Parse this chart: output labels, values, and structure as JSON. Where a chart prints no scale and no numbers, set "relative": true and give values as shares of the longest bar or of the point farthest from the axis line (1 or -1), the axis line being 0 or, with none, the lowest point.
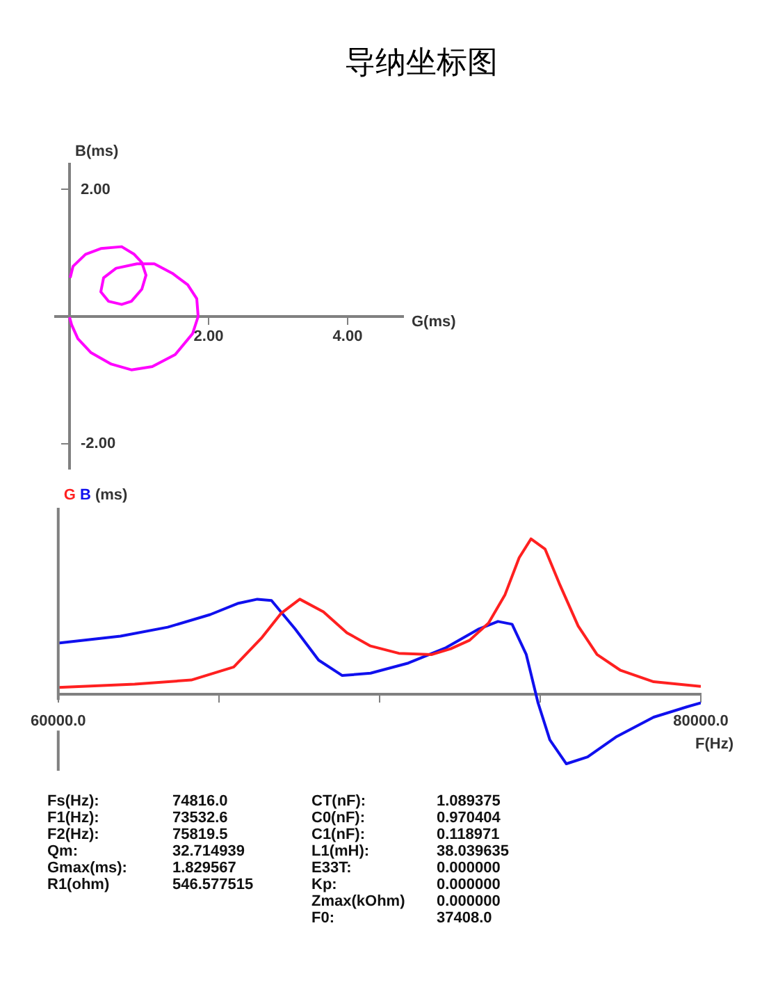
{
  "chart_data": [
    {
      "type": "line",
      "title": "导纳坐标图",
      "xlabel": "G(ms)",
      "ylabel": "B(ms)",
      "xlim": [
        -0.2,
        4.8
      ],
      "ylim": [
        -2.4,
        2.4
      ],
      "xticks": [
        {
          "value": 2,
          "label": "2.00"
        },
        {
          "value": 4,
          "label": "4.00"
        }
      ],
      "yticks": [
        {
          "value": 2,
          "label": "2.00"
        },
        {
          "value": -2,
          "label": "-2.00"
        }
      ],
      "series": [
        {
          "color": "#ff00ff",
          "x": [
            0.01,
            0.05,
            0.23,
            0.45,
            0.75,
            0.93,
            1.04,
            1.1,
            1.04,
            0.89,
            0.75,
            0.56,
            0.45,
            0.49,
            0.67,
            0.97,
            1.22,
            1.48,
            1.7,
            1.83,
            1.85,
            1.77,
            1.52,
            1.19,
            0.89,
            0.6,
            0.31,
            0.12,
            0.03,
            0
          ],
          "values": [
            0.61,
            0.79,
            0.98,
            1.07,
            1.1,
            0.98,
            0.85,
            0.65,
            0.43,
            0.24,
            0.19,
            0.24,
            0.39,
            0.61,
            0.76,
            0.83,
            0.83,
            0.68,
            0.5,
            0.28,
            0,
            -0.27,
            -0.6,
            -0.79,
            -0.84,
            -0.75,
            -0.57,
            -0.35,
            -0.13,
            -0.01
          ]
        }
      ]
    },
    {
      "type": "line",
      "relative": true,
      "xlabel": "F(Hz)",
      "ylabel": "(ms)",
      "tick_labels": "x",
      "xlim": [
        60000,
        80000
      ],
      "xticks": [
        {
          "value": 60000,
          "label": "60000.0"
        },
        {
          "value": 65000,
          "label": null
        },
        {
          "value": 70000,
          "label": null
        },
        {
          "value": 75000,
          "label": null
        },
        {
          "value": 80000,
          "label": "80000.0"
        }
      ],
      "series": [
        {
          "name": "G",
          "color": "#ff2020",
          "x": [
            60000,
            62379,
            64141,
            65462,
            66343,
            66931,
            67518,
            68252,
            68986,
            69720,
            70601,
            71630,
            72217,
            72805,
            73392,
            73906,
            74346,
            74713,
            75154,
            75594,
            76182,
            76769,
            77503,
            78531,
            80000
          ],
          "values": [
            0.044,
            0.066,
            0.092,
            0.176,
            0.366,
            0.52,
            0.612,
            0.531,
            0.396,
            0.311,
            0.264,
            0.256,
            0.293,
            0.348,
            0.458,
            0.641,
            0.879,
            1,
            0.934,
            0.714,
            0.44,
            0.256,
            0.154,
            0.081,
            0.051
          ]
        },
        {
          "name": "B",
          "color": "#1010ee",
          "x": [
            60000,
            61938,
            63407,
            64729,
            65609,
            66197,
            66637,
            67371,
            68105,
            68840,
            69720,
            70895,
            72070,
            73098,
            73686,
            74126,
            74567,
            74934,
            75301,
            75815,
            76476,
            77357,
            78531,
            79559,
            80000
          ],
          "values": [
            0.33,
            0.374,
            0.432,
            0.513,
            0.586,
            0.612,
            0.604,
            0.421,
            0.22,
            0.121,
            0.136,
            0.201,
            0.3,
            0.421,
            0.469,
            0.451,
            0.256,
            -0.055,
            -0.293,
            -0.447,
            -0.403,
            -0.275,
            -0.147,
            -0.081,
            -0.055
          ]
        }
      ],
      "annotations": [
        "Fs(Hz): 74816.0",
        "F1(Hz): 73532.6",
        "F2(Hz): 75819.5",
        "Qm: 32.714939",
        "Gmax(ms): 1.829567",
        "R1(ohm) 546.577515",
        "CT(nF): 1.089375",
        "C0(nF): 0.970404",
        "C1(nF): 0.118971",
        "L1(mH): 38.039635",
        "E33T: 0.000000",
        "Kp: 0.000000",
        "Zmax(kOhm) 0.000000",
        "F0: 37408.0"
      ]
    }
  ]
}
